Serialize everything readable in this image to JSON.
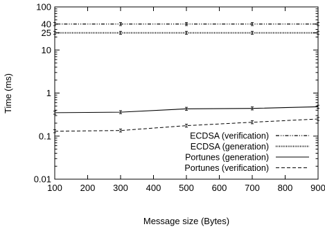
{
  "chart_data": {
    "type": "line",
    "xlabel": "Message size (Bytes)",
    "ylabel": "Time (ms)",
    "xlim": [
      100,
      900
    ],
    "ylim": [
      0.01,
      100
    ],
    "yscale": "log",
    "grid": false,
    "legend_position": "bottom-right",
    "x_ticks": [
      "100",
      "200",
      "300",
      "400",
      "500",
      "600",
      "700",
      "800",
      "900"
    ],
    "y_ticks": [
      {
        "value": 0.01,
        "label": "0.01"
      },
      {
        "value": 0.1,
        "label": "0.1"
      },
      {
        "value": 1,
        "label": "1"
      },
      {
        "value": 10,
        "label": "10"
      },
      {
        "value": 25,
        "label": "25"
      },
      {
        "value": 40,
        "label": "40"
      },
      {
        "value": 100,
        "label": "100"
      }
    ],
    "series": [
      {
        "name": "ECDSA (verification)",
        "style": "dashdotdot",
        "x": [
          100,
          300,
          500,
          700,
          900
        ],
        "y": [
          40,
          40,
          40,
          40,
          40
        ]
      },
      {
        "name": "ECDSA (generation)",
        "style": "dotted",
        "x": [
          100,
          300,
          500,
          700,
          900
        ],
        "y": [
          25,
          25,
          25,
          25,
          25
        ]
      },
      {
        "name": "Portunes (generation)",
        "style": "solid",
        "x": [
          100,
          300,
          500,
          700,
          900
        ],
        "y": [
          0.35,
          0.36,
          0.43,
          0.44,
          0.48
        ]
      },
      {
        "name": "Portunes (verification)",
        "style": "dashed",
        "x": [
          100,
          300,
          500,
          700,
          900
        ],
        "y": [
          0.13,
          0.135,
          0.175,
          0.21,
          0.25
        ]
      }
    ]
  }
}
